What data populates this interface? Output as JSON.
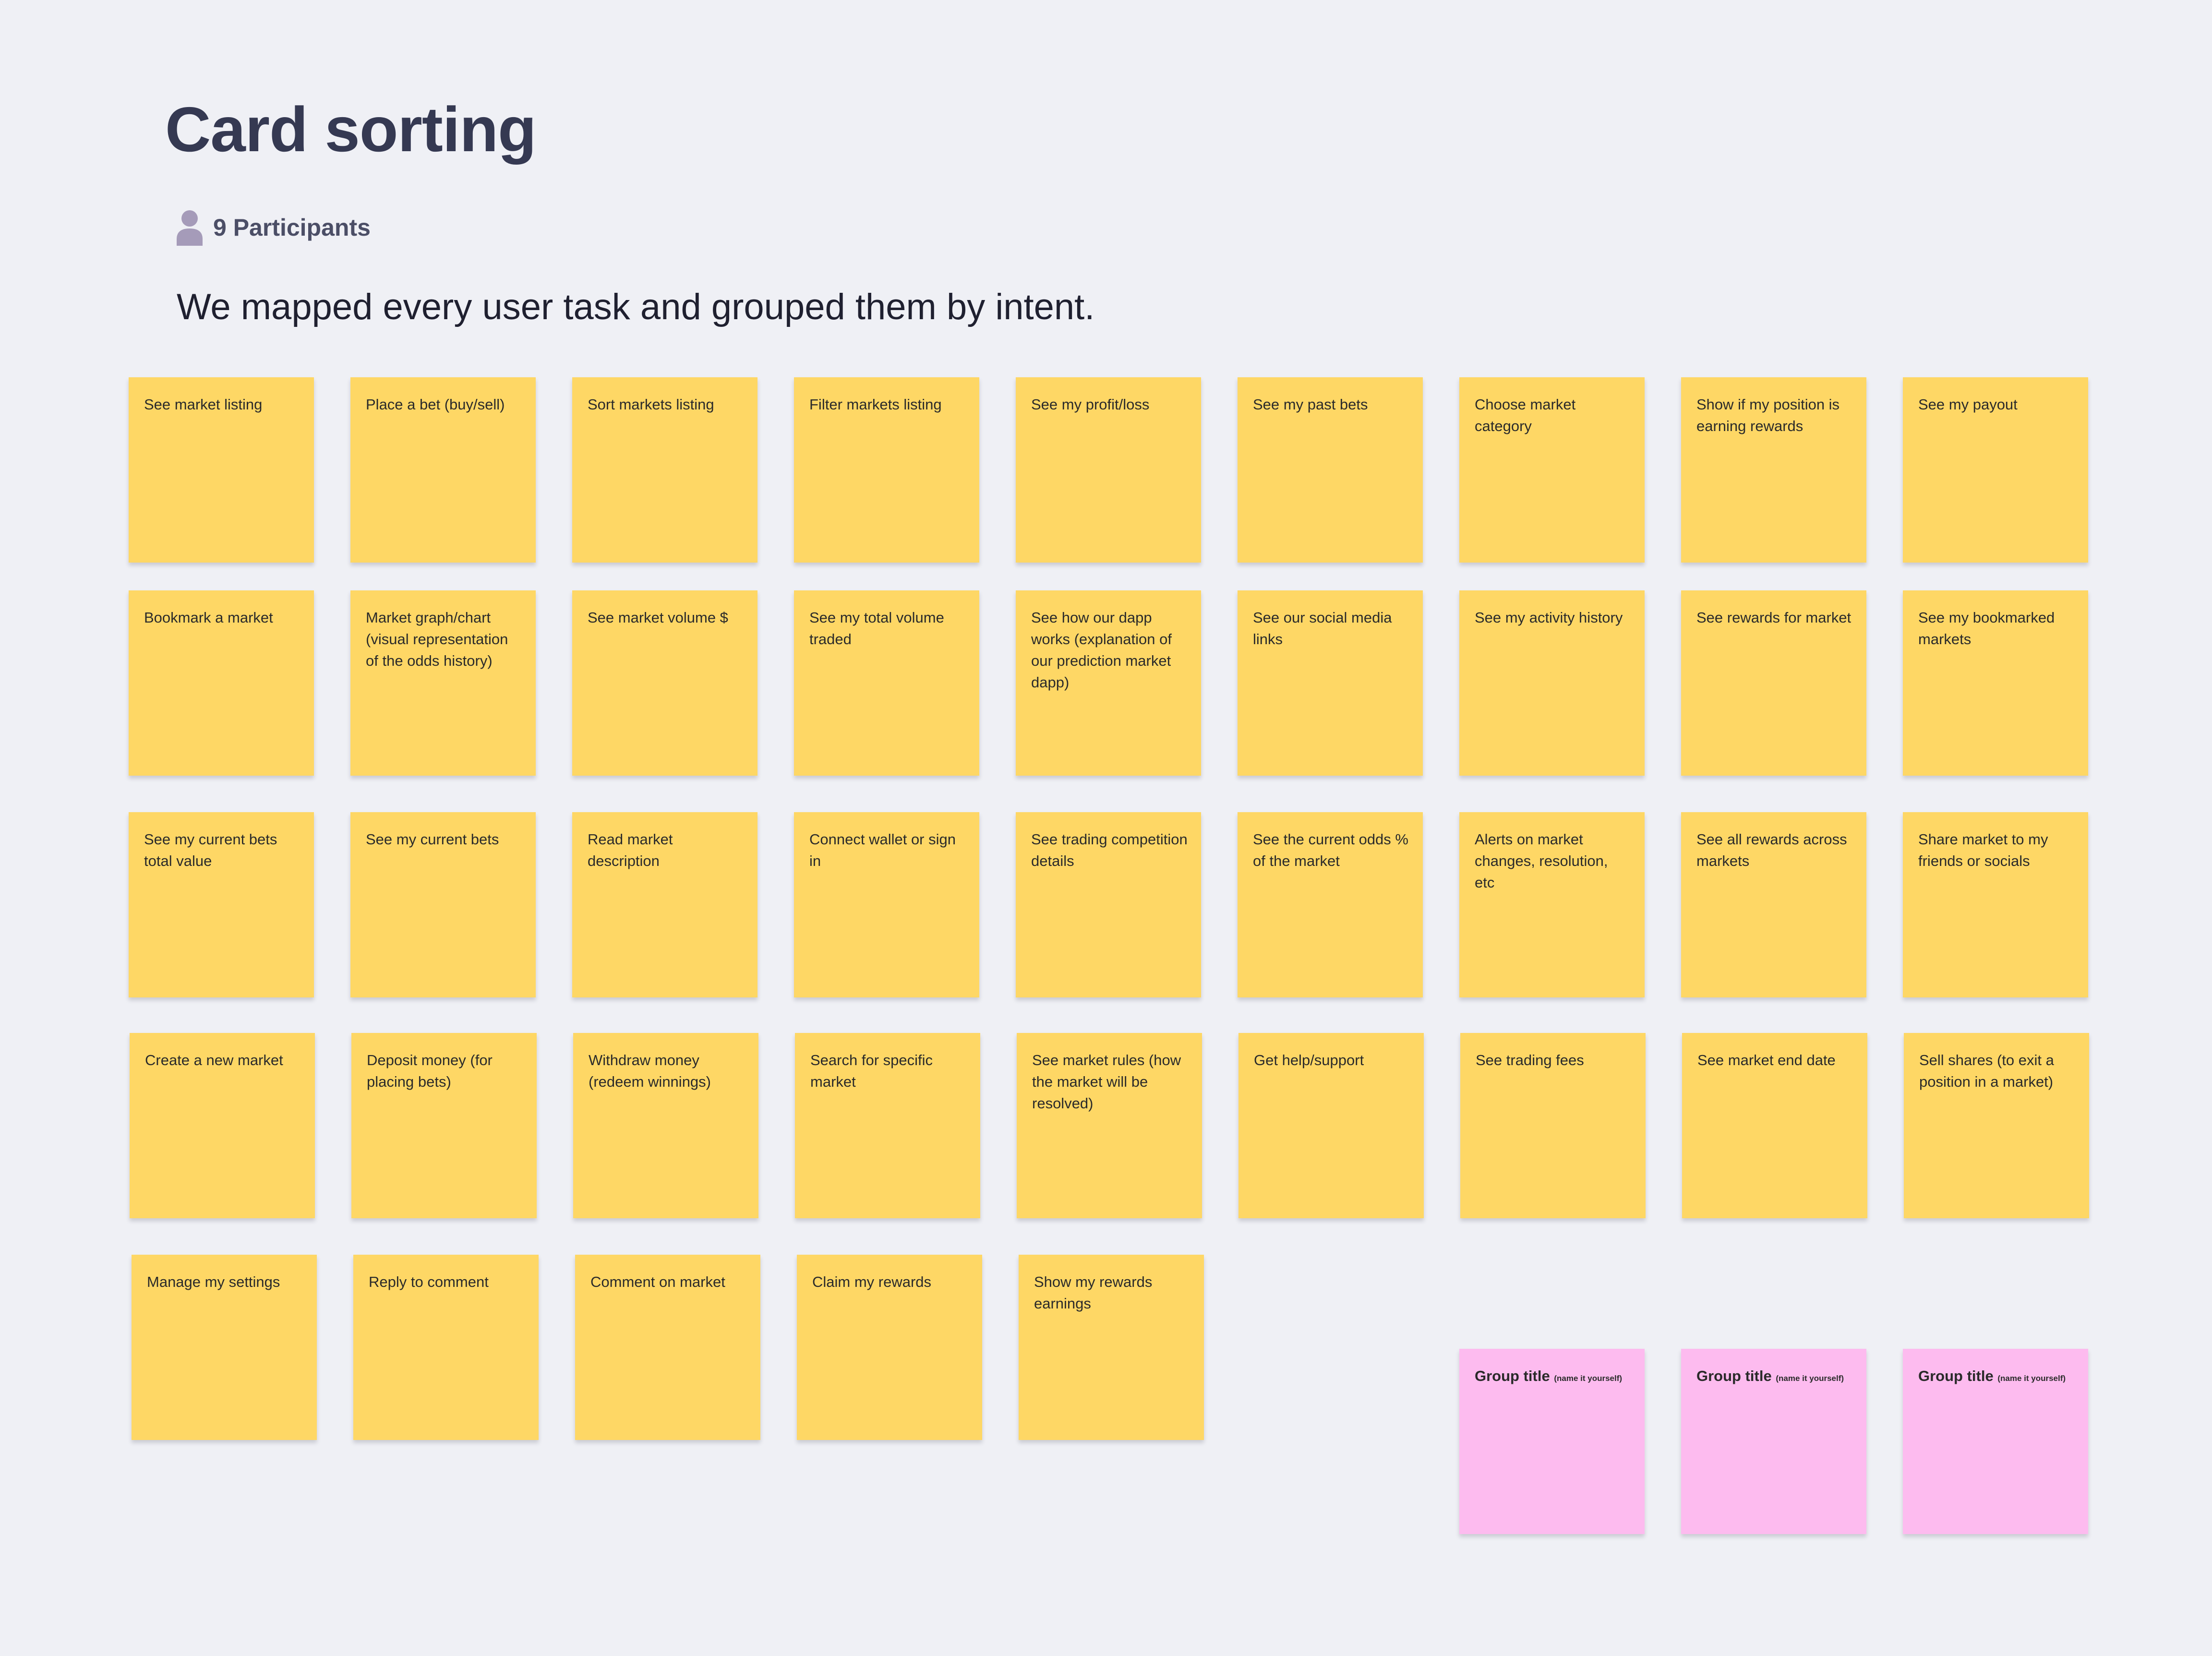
{
  "header": {
    "title": "Card sorting",
    "participants_label": "9 Participants",
    "participants_icon": "person-icon",
    "subtitle": "We mapped every user task and grouped them by intent."
  },
  "colors": {
    "background": "#eff0f5",
    "task_card": "#fed765",
    "group_card": "#fdbbef",
    "title": "#353952"
  },
  "cards": [
    "See market listing",
    "Place a bet (buy/sell)",
    "Sort markets listing",
    "Filter markets listing",
    "See my profit/loss",
    "See my past bets",
    "Choose market category",
    "Show if my position is earning rewards",
    "See my payout",
    "Bookmark a market",
    "Market graph/chart (visual representation of the odds history)",
    "See market volume $",
    "See my total volume traded",
    "See how our dapp works (explanation of our prediction market dapp)",
    "See our social media links",
    "See my activity history",
    "See rewards for market",
    "See my bookmarked markets",
    "See my current bets total value",
    "See my current bets",
    "Read market description",
    "Connect wallet or sign in",
    "See trading competition details",
    "See the current odds % of the market",
    "Alerts on market changes, resolution, etc",
    "See all rewards across markets",
    "Share market to my friends or socials",
    "Create a new market",
    "Deposit money (for placing bets)",
    "Withdraw money (redeem winnings)",
    "Search for specific market",
    "See market rules (how the market will be resolved)",
    "Get help/support",
    "See trading fees",
    "See market end date",
    "Sell shares (to exit a position in a market)",
    "Manage my settings",
    "Reply to comment",
    "Comment on market",
    "Claim my rewards",
    "Show my rewards earnings"
  ],
  "group_cards": [
    {
      "title": "Group title",
      "hint": "(name it yourself)"
    },
    {
      "title": "Group title",
      "hint": "(name it yourself)"
    },
    {
      "title": "Group title",
      "hint": "(name it yourself)"
    }
  ]
}
